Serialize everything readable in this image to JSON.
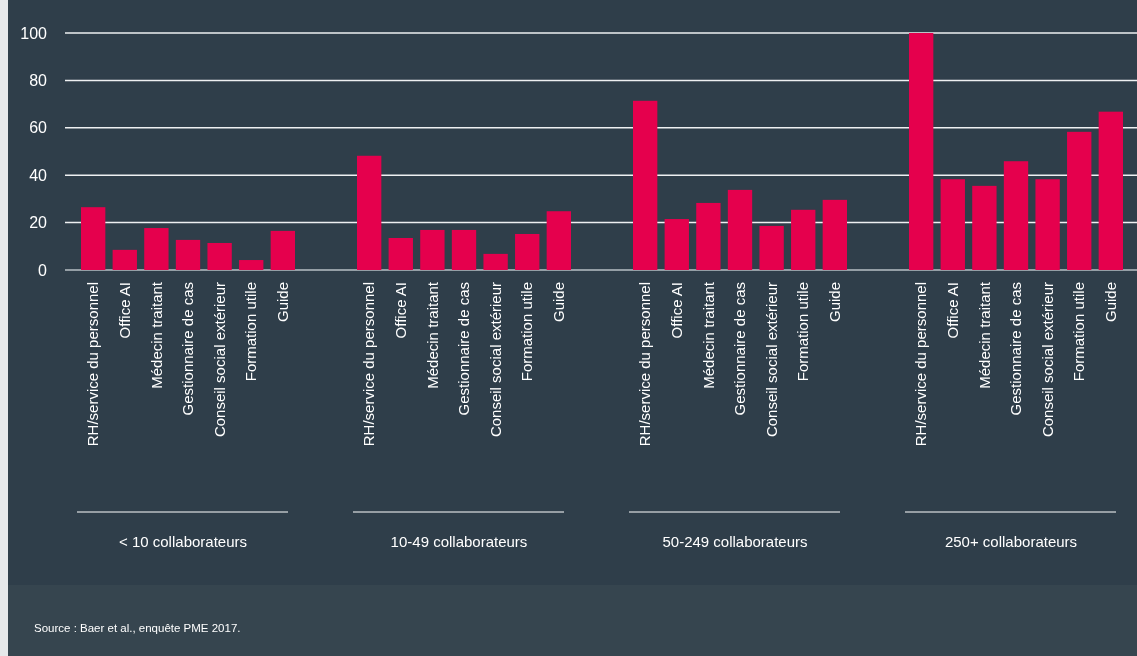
{
  "chart_data": [
    {
      "type": "bar",
      "categories": [
        "RH/service du personnel",
        "Office AI",
        "Médecin traitant",
        "Gestionnaire de cas",
        "Conseil social extérieur",
        "Formation utile",
        "Guide"
      ],
      "values": [
        26.5,
        8.5,
        17.7,
        12.7,
        11.4,
        4.2,
        16.5
      ],
      "color": "#e5004d",
      "ylim": [
        0,
        100
      ],
      "yticks": [
        0,
        20,
        40,
        60,
        80,
        100
      ],
      "grid": "y",
      "xlabel": "< 10 collaborateurs",
      "annotations": [
        "Source : Baer et al., enquête PME 2017."
      ]
    },
    {
      "type": "bar",
      "categories": [
        "RH/service du personnel",
        "Office AI",
        "Médecin traitant",
        "Gestionnaire de cas",
        "Conseil social extérieur",
        "Formation utile",
        "Guide"
      ],
      "values": [
        48.2,
        13.5,
        16.9,
        16.9,
        6.8,
        15.2,
        24.8
      ],
      "color": "#e5004d",
      "ylim": [
        0,
        100
      ],
      "yticks": [
        0,
        20,
        40,
        60,
        80,
        100
      ],
      "grid": "y",
      "xlabel": "10-49 collaborateurs",
      "tick_labels": "x"
    },
    {
      "type": "bar",
      "categories": [
        "RH/service du personnel",
        "Office AI",
        "Médecin traitant",
        "Gestionnaire de cas",
        "Conseil social extérieur",
        "Formation utile",
        "Guide"
      ],
      "values": [
        71.4,
        21.5,
        28.3,
        33.8,
        18.6,
        25.4,
        29.6
      ],
      "color": "#e5004d",
      "ylim": [
        0,
        100
      ],
      "yticks": [
        0,
        20,
        40,
        60,
        80,
        100
      ],
      "grid": "y",
      "xlabel": "50-249 collaborateurs",
      "tick_labels": "x"
    },
    {
      "type": "bar",
      "categories": [
        "RH/service du personnel",
        "Office AI",
        "Médecin traitant",
        "Gestionnaire de cas",
        "Conseil social extérieur",
        "Formation utile",
        "Guide"
      ],
      "values": [
        100,
        38.3,
        35.5,
        45.9,
        38.3,
        58.3,
        66.8
      ],
      "color": "#e5004d",
      "ylim": [
        0,
        100
      ],
      "yticks": [
        0,
        20,
        40,
        60,
        80,
        100
      ],
      "grid": "y",
      "xlabel": "250+ collaborateurs",
      "tick_labels": "x"
    }
  ]
}
